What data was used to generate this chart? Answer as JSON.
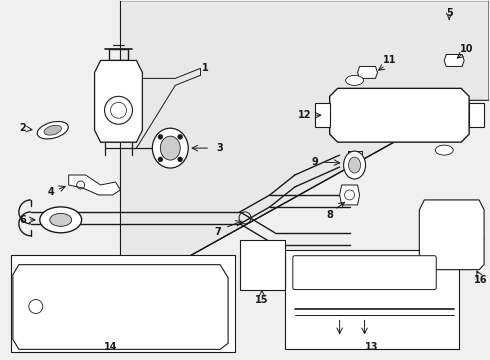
{
  "bg_color": "#f0f0f0",
  "line_color": "#1a1a1a",
  "fig_width": 4.9,
  "fig_height": 3.6,
  "dpi": 100,
  "panel_color": "#e8e8e8",
  "white": "#ffffff",
  "font_size": 7
}
